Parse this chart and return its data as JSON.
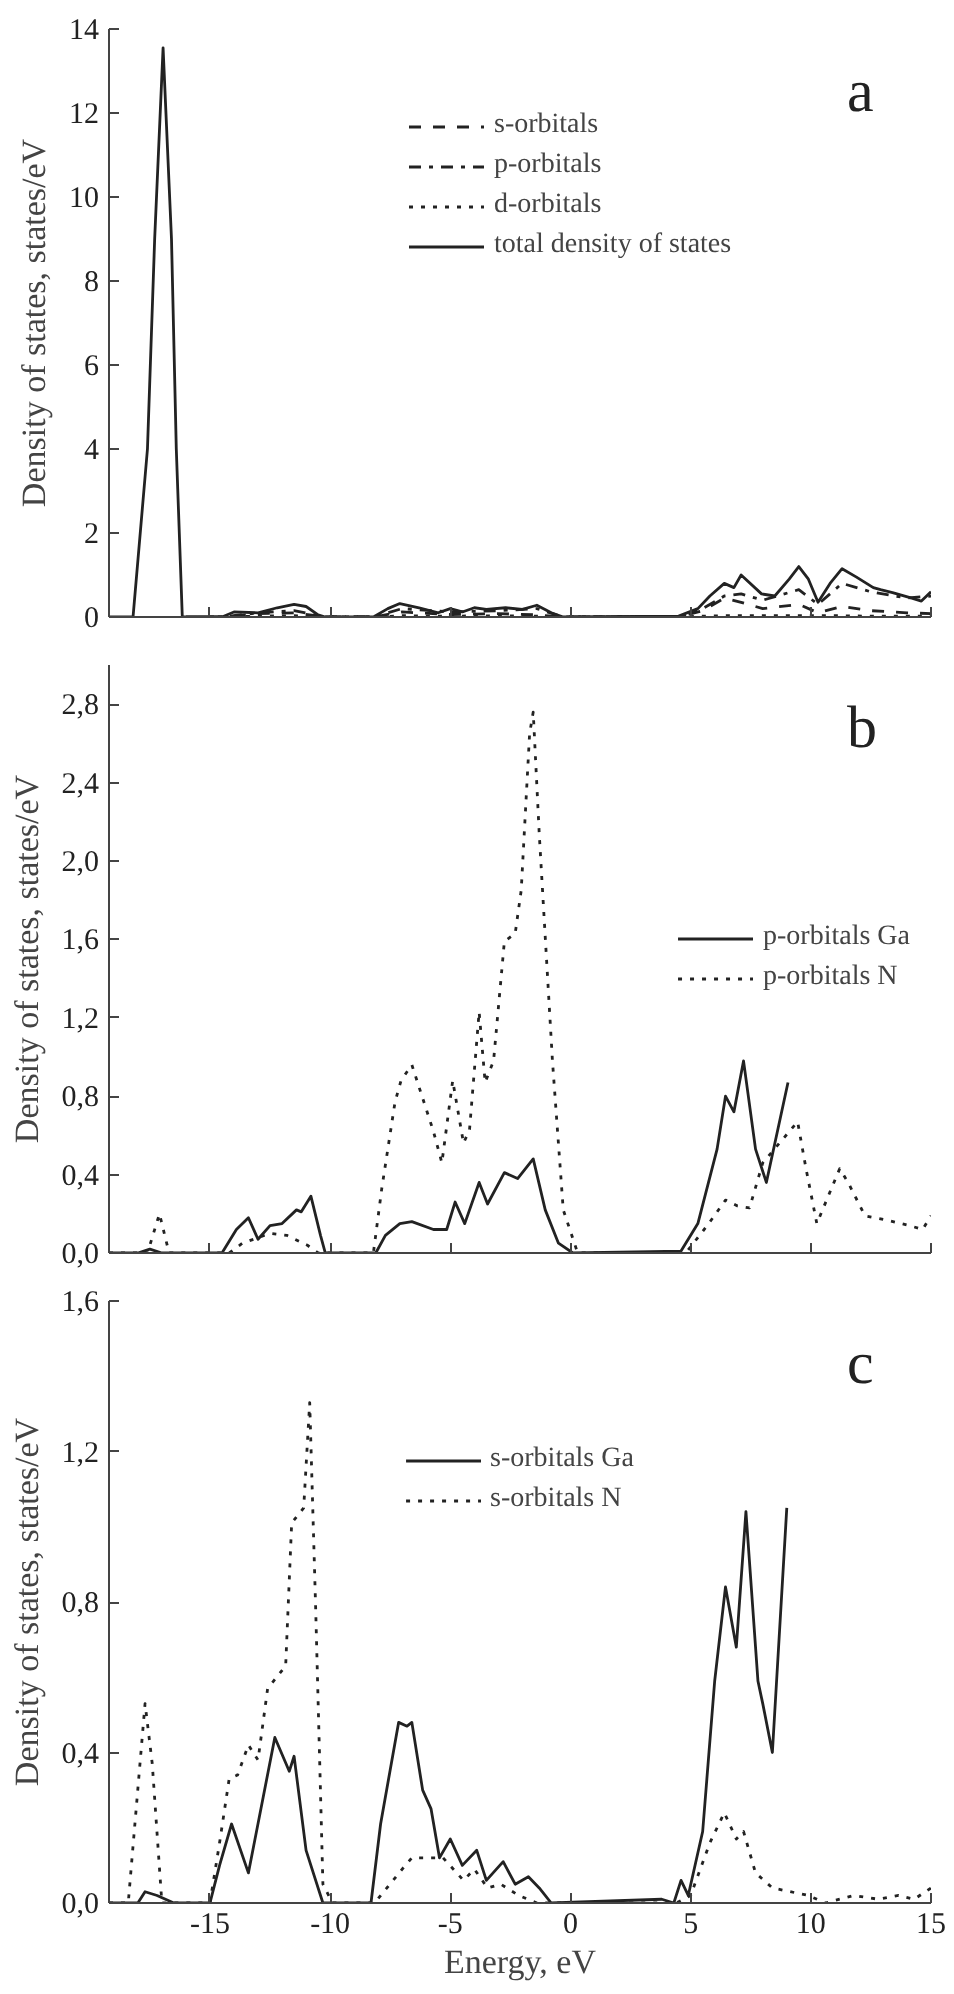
{
  "chart_data": [
    {
      "type": "line",
      "title": "a",
      "ylabel": "Density of states, states/eV",
      "xlim": [
        -19.2,
        15
      ],
      "ylim": [
        0,
        14
      ],
      "xticks": [
        {
          "value": -15,
          "label": null
        },
        {
          "value": -10,
          "label": null
        },
        {
          "value": -5,
          "label": null
        },
        {
          "value": 0,
          "label": null
        },
        {
          "value": 5,
          "label": null
        },
        {
          "value": 10,
          "label": null
        },
        {
          "value": 15,
          "label": null
        }
      ],
      "yticks": [
        0,
        2,
        4,
        6,
        8,
        10,
        12,
        14
      ],
      "tick_labels": "y",
      "grid": false,
      "legend": "top",
      "series": [
        {
          "name": "s-orbitals",
          "color": "#222222",
          "line_style": "dashed",
          "x": [
            -16.0,
            -14.5,
            -13,
            -11.5,
            -10.2,
            -8.2,
            -7,
            -5,
            -3,
            -1.4,
            -0.3,
            4.5,
            5.5,
            6.4,
            7.1,
            8,
            9.5,
            10.3,
            11.3,
            12.5,
            14,
            15
          ],
          "values": [
            0,
            0,
            0.08,
            0.1,
            0,
            0,
            0.12,
            0.06,
            0.08,
            0.05,
            0,
            0,
            0.15,
            0.45,
            0.35,
            0.2,
            0.3,
            0.1,
            0.25,
            0.15,
            0.1,
            0.08
          ]
        },
        {
          "name": "p-orbitals",
          "color": "#222222",
          "line_style": "dashdot",
          "x": [
            -15.5,
            -14.5,
            -13,
            -11.5,
            -10.2,
            -8.2,
            -7,
            -5,
            -3,
            -1.4,
            -0.3,
            4.5,
            5.5,
            6.4,
            7.1,
            8,
            9.5,
            10.3,
            11.3,
            12.5,
            14,
            15
          ],
          "values": [
            0,
            0,
            0.1,
            0.15,
            0,
            0,
            0.2,
            0.12,
            0.15,
            0.2,
            0,
            0,
            0.2,
            0.5,
            0.55,
            0.4,
            0.65,
            0.3,
            0.8,
            0.6,
            0.45,
            0.5
          ]
        },
        {
          "name": "d-orbitals",
          "color": "#222222",
          "line_style": "dotted",
          "x": [
            -15.0,
            -14.5,
            -13,
            -11.5,
            -10.2,
            -8.2,
            -7,
            -5,
            -3,
            -1.4,
            -0.3,
            4.5,
            5.5,
            6.4,
            7.1,
            8,
            9.5,
            10.3,
            11.3,
            12.5,
            14,
            15
          ],
          "values": [
            0,
            0,
            0.02,
            0.03,
            0,
            0,
            0.03,
            0.02,
            0.03,
            0.02,
            0,
            0,
            0.02,
            0.03,
            0.03,
            0.03,
            0.03,
            0.03,
            0.03,
            0.02,
            0.02,
            0.02
          ]
        },
        {
          "name": "total density of states",
          "color": "#222222",
          "line_style": "solid",
          "x": [
            -19.2,
            -18.2,
            -17.6,
            -17.3,
            -16.95,
            -16.6,
            -16.4,
            -16.15,
            -14.5,
            -14,
            -13,
            -12.2,
            -11.5,
            -11,
            -10.5,
            -10.2,
            -8.2,
            -7.6,
            -7.1,
            -6.3,
            -5.5,
            -5,
            -4.5,
            -4,
            -3.5,
            -2.7,
            -2,
            -1.4,
            -0.8,
            -0.3,
            4.5,
            5.3,
            5.8,
            6.4,
            6.8,
            7.1,
            7.95,
            8.5,
            9.1,
            9.5,
            9.9,
            10.3,
            10.8,
            11.3,
            11.9,
            12.6,
            12.9,
            13.4,
            14.2,
            14.6,
            15
          ],
          "values": [
            0,
            0,
            4,
            9,
            13.55,
            9,
            4,
            0,
            0,
            0.12,
            0.1,
            0.22,
            0.3,
            0.25,
            0.05,
            0,
            0,
            0.2,
            0.32,
            0.22,
            0.1,
            0.2,
            0.12,
            0.22,
            0.18,
            0.22,
            0.18,
            0.28,
            0.1,
            0,
            0.02,
            0.2,
            0.5,
            0.8,
            0.7,
            1.0,
            0.55,
            0.5,
            0.9,
            1.2,
            0.9,
            0.35,
            0.8,
            1.15,
            0.95,
            0.7,
            0.65,
            0.58,
            0.45,
            0.38,
            0.6
          ]
        }
      ]
    },
    {
      "type": "line",
      "title": "b",
      "ylabel": "Density of states, states/eV",
      "xlim": [
        -19.2,
        15
      ],
      "ylim": [
        0,
        3.0
      ],
      "xticks": [
        {
          "value": -15,
          "label": null
        },
        {
          "value": -10,
          "label": null
        },
        {
          "value": -5,
          "label": null
        },
        {
          "value": 0,
          "label": null
        },
        {
          "value": 5,
          "label": null
        },
        {
          "value": 10,
          "label": null
        },
        {
          "value": 15,
          "label": null
        }
      ],
      "yticks": [
        {
          "value": 0,
          "label": "0,0"
        },
        {
          "value": 0.4,
          "label": "0,4"
        },
        {
          "value": 0.8,
          "label": "0,8"
        },
        {
          "value": 1.2,
          "label": "1,2"
        },
        {
          "value": 1.6,
          "label": "1,6"
        },
        {
          "value": 2.0,
          "label": "2,0"
        },
        {
          "value": 2.4,
          "label": "2,4"
        },
        {
          "value": 2.8,
          "label": "2,8"
        }
      ],
      "tick_labels": "y",
      "grid": false,
      "legend": "right",
      "series": [
        {
          "name": "p-orbitals Ga",
          "color": "#222222",
          "line_style": "solid",
          "x": [
            -19.2,
            -18.0,
            -17.5,
            -17.0,
            -14.5,
            -13.9,
            -13.4,
            -13.0,
            -12.5,
            -12.0,
            -11.4,
            -11.2,
            -10.8,
            -10.4,
            -10.2,
            -8.1,
            -7.7,
            -7.1,
            -6.6,
            -5.7,
            -5.15,
            -4.8,
            -4.4,
            -3.8,
            -3.45,
            -2.75,
            -2.2,
            -1.55,
            -1.05,
            -0.5,
            0.1,
            4.6,
            5.3,
            6.1,
            6.45,
            6.8,
            7.2,
            7.7,
            8.15,
            9.05
          ],
          "values": [
            0,
            0,
            0.02,
            0,
            0,
            0.12,
            0.18,
            0.07,
            0.14,
            0.15,
            0.22,
            0.21,
            0.29,
            0.09,
            0,
            0,
            0.09,
            0.15,
            0.16,
            0.12,
            0.12,
            0.26,
            0.15,
            0.36,
            0.25,
            0.41,
            0.38,
            0.48,
            0.22,
            0.05,
            0,
            0.01,
            0.15,
            0.53,
            0.8,
            0.72,
            0.98,
            0.53,
            0.36,
            0.87
          ]
        },
        {
          "name": "p-orbitals N",
          "color": "#222222",
          "line_style": "dotted",
          "x": [
            -19.2,
            -17.6,
            -17.1,
            -16.7,
            -14.2,
            -13.65,
            -12.5,
            -11.8,
            -10.95,
            -10.5,
            -8.2,
            -7.85,
            -7.3,
            -7.05,
            -6.6,
            -5.7,
            -5.35,
            -4.9,
            -4.45,
            -4.2,
            -3.8,
            -3.55,
            -3.2,
            -2.75,
            -2.3,
            -2.05,
            -1.7,
            -1.55,
            -1.3,
            -0.75,
            -0.3,
            0.3,
            4.8,
            5.75,
            6.45,
            6.95,
            7.45,
            8.0,
            9.45,
            9.8,
            10.25,
            11.2,
            11.55,
            12.25,
            13.1,
            14.1,
            14.65,
            15.0
          ],
          "values": [
            0,
            0,
            0.2,
            0,
            0,
            0.05,
            0.1,
            0.09,
            0.04,
            0,
            0,
            0.33,
            0.77,
            0.88,
            0.96,
            0.62,
            0.46,
            0.88,
            0.56,
            0.63,
            1.23,
            0.87,
            0.98,
            1.59,
            1.63,
            1.85,
            2.65,
            2.76,
            2.14,
            0.98,
            0.22,
            0,
            0,
            0.15,
            0.27,
            0.24,
            0.23,
            0.46,
            0.67,
            0.43,
            0.15,
            0.43,
            0.36,
            0.19,
            0.17,
            0.14,
            0.12,
            0.19
          ]
        }
      ]
    },
    {
      "type": "line",
      "title": "c",
      "xlabel": "Energy, eV",
      "ylabel": "Density of states, states/eV",
      "xlim": [
        -19.2,
        15
      ],
      "ylim": [
        0,
        1.6
      ],
      "xticks": [
        -15,
        -10,
        -5,
        0,
        5,
        10,
        15
      ],
      "yticks": [
        {
          "value": 0,
          "label": "0,0"
        },
        {
          "value": 0.4,
          "label": "0,4"
        },
        {
          "value": 0.8,
          "label": "0,8"
        },
        {
          "value": 1.2,
          "label": "1,2"
        },
        {
          "value": 1.6,
          "label": "1,6"
        }
      ],
      "grid": false,
      "legend": "top",
      "series": [
        {
          "name": "s-orbitals Ga",
          "color": "#222222",
          "line_style": "solid",
          "x": [
            -19.2,
            -18.0,
            -17.7,
            -17.2,
            -16.5,
            -15.0,
            -14.6,
            -14.1,
            -13.4,
            -12.3,
            -11.7,
            -11.5,
            -11.0,
            -10.3,
            -8.3,
            -7.9,
            -7.15,
            -6.8,
            -6.6,
            -6.15,
            -5.8,
            -5.45,
            -5.0,
            -4.5,
            -3.9,
            -3.5,
            -2.8,
            -2.3,
            -1.75,
            -1.3,
            -0.8,
            3.8,
            4.3,
            4.6,
            4.9,
            5.5,
            6.0,
            6.45,
            6.9,
            7.3,
            7.8,
            8.0,
            8.4,
            9.0
          ],
          "values": [
            0,
            0,
            0.03,
            0.02,
            0,
            0,
            0.1,
            0.21,
            0.08,
            0.44,
            0.35,
            0.39,
            0.14,
            0,
            0,
            0.21,
            0.48,
            0.47,
            0.48,
            0.3,
            0.25,
            0.12,
            0.17,
            0.1,
            0.14,
            0.06,
            0.11,
            0.05,
            0.07,
            0.04,
            0,
            0.01,
            0,
            0.06,
            0.02,
            0.19,
            0.59,
            0.84,
            0.68,
            1.04,
            0.59,
            0.53,
            0.4,
            1.05
          ]
        },
        {
          "name": "s-orbitals N",
          "color": "#222222",
          "line_style": "dotted",
          "x": [
            -19.2,
            -18.4,
            -17.7,
            -17.4,
            -17.0,
            -15.0,
            -14.6,
            -14.2,
            -13.85,
            -13.4,
            -13.0,
            -12.6,
            -11.85,
            -11.6,
            -11.1,
            -10.85,
            -10.6,
            -10.3,
            -9.9,
            -8.15,
            -7.0,
            -6.6,
            -5.3,
            -4.45,
            -4.0,
            -3.45,
            -2.9,
            -2.15,
            -1.4,
            4.4,
            5.0,
            5.8,
            6.4,
            6.9,
            7.2,
            7.7,
            8.4,
            9.9,
            10.6,
            11.8,
            12.8,
            13.65,
            14.3,
            15.0
          ],
          "values": [
            0,
            0,
            0.53,
            0.37,
            0,
            0,
            0.16,
            0.33,
            0.34,
            0.42,
            0.38,
            0.57,
            0.63,
            1.01,
            1.05,
            1.33,
            0.78,
            0.05,
            0,
            0,
            0.09,
            0.12,
            0.12,
            0.06,
            0.09,
            0.04,
            0.05,
            0.02,
            0,
            0,
            0.02,
            0.16,
            0.24,
            0.17,
            0.19,
            0.08,
            0.04,
            0.02,
            0,
            0.02,
            0.01,
            0.02,
            0.01,
            0.04
          ]
        }
      ]
    }
  ]
}
